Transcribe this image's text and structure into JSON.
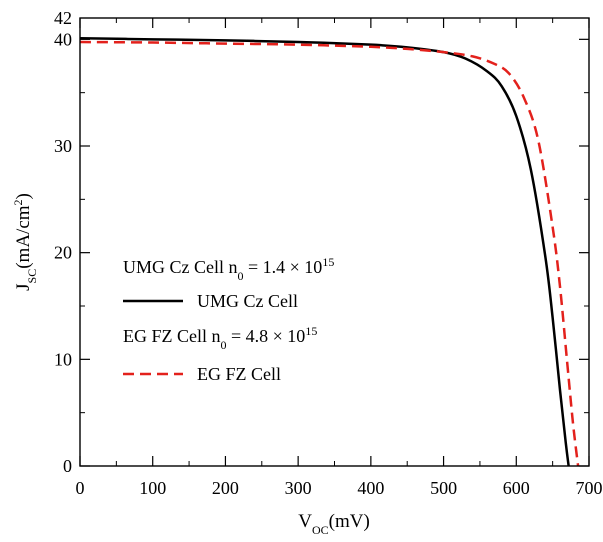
{
  "chart_data": {
    "type": "line",
    "title": "",
    "xlabel": {
      "base": "V",
      "sub": "OC",
      "rest": "(mV)"
    },
    "ylabel": {
      "base": "J",
      "sub": "SC",
      "rest": "(mA/cm",
      "sup": "2",
      "close": ")"
    },
    "xlim": [
      0,
      700
    ],
    "ylim": [
      0,
      42
    ],
    "x_ticks": [
      0,
      100,
      200,
      300,
      400,
      500,
      600,
      700
    ],
    "y_ticks": [
      0,
      10,
      20,
      30,
      40,
      42
    ],
    "annotations": [
      {
        "text": "UMG Cz Cell n",
        "sub": "0",
        "rest": " = 1.4 × 10",
        "sup": "15"
      },
      {
        "text": "EG FZ Cell n",
        "sub": "0",
        "rest": " = 4.8 × 10",
        "sup": "15"
      }
    ],
    "legend_position": "center-left",
    "series": [
      {
        "name": "UMG Cz Cell",
        "color": "#000000",
        "style": "solid",
        "x": [
          0,
          100,
          200,
          300,
          400,
          450,
          500,
          530,
          560,
          580,
          600,
          620,
          640,
          650,
          660,
          668,
          672
        ],
        "y": [
          40.1,
          40.0,
          39.9,
          39.75,
          39.5,
          39.25,
          38.8,
          38.2,
          37.0,
          35.6,
          32.8,
          27.8,
          19.6,
          13.9,
          7.2,
          2.2,
          0
        ]
      },
      {
        "name": "EG FZ Cell",
        "color": "#e3211c",
        "style": "dashed",
        "x": [
          0,
          100,
          200,
          300,
          400,
          450,
          500,
          540,
          570,
          590,
          610,
          630,
          650,
          660,
          670,
          678,
          685
        ],
        "y": [
          39.75,
          39.7,
          39.6,
          39.5,
          39.3,
          39.1,
          38.8,
          38.4,
          37.7,
          36.8,
          34.6,
          30.6,
          22.4,
          16.9,
          9.7,
          4.0,
          0
        ]
      }
    ]
  }
}
